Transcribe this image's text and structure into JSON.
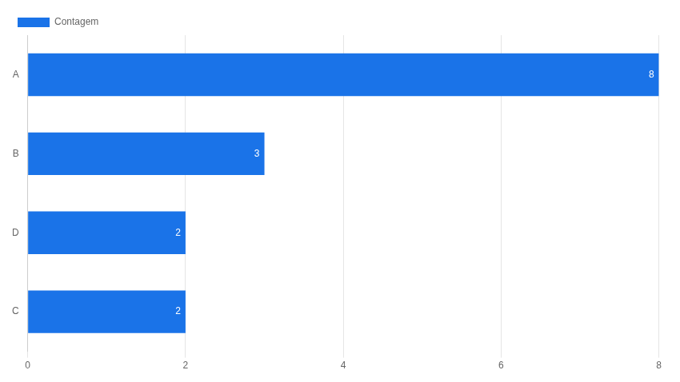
{
  "chart_data": {
    "type": "bar",
    "orientation": "horizontal",
    "categories": [
      "A",
      "B",
      "D",
      "C"
    ],
    "series": [
      {
        "name": "Contagem",
        "color": "#1a73e8",
        "values": [
          8,
          3,
          2,
          2
        ]
      }
    ],
    "xlim": [
      0,
      8
    ],
    "xticks": [
      0,
      2,
      4,
      6,
      8
    ],
    "grid": true,
    "legend": "upper left",
    "data_labels": true
  }
}
